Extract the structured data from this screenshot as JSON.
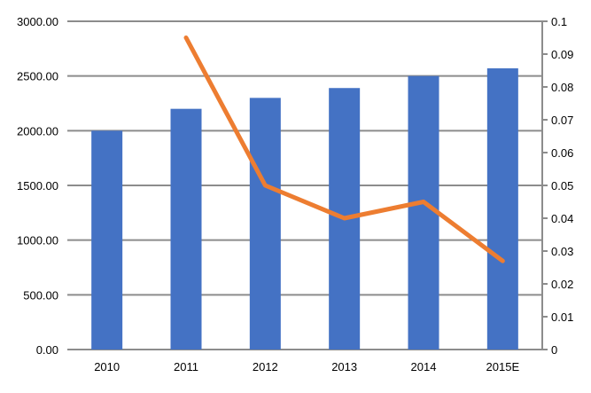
{
  "chart_data": {
    "type": "bar+line",
    "categories": [
      "2010",
      "2011",
      "2012",
      "2013",
      "2014",
      "2015E"
    ],
    "series": [
      {
        "type": "bar",
        "axis": "left",
        "color": "#4472C4",
        "values": [
          2000,
          2200,
          2300,
          2390,
          2500,
          2570
        ]
      },
      {
        "type": "line",
        "axis": "right",
        "color": "#ED7D31",
        "values": [
          null,
          0.095,
          0.05,
          0.04,
          0.045,
          0.027
        ]
      }
    ],
    "left_axis": {
      "ylim": [
        0,
        3000
      ],
      "ticks": [
        "0.00",
        "500.00",
        "1000.00",
        "1500.00",
        "2000.00",
        "2500.00",
        "3000.00"
      ]
    },
    "right_axis": {
      "ylim": [
        0,
        0.1
      ],
      "ticks": [
        "0",
        "0.01",
        "0.02",
        "0.03",
        "0.04",
        "0.05",
        "0.06",
        "0.07",
        "0.08",
        "0.09",
        "0.1"
      ]
    },
    "grid": true,
    "legend": "none",
    "title": "",
    "xlabel": "",
    "ylabel": ""
  }
}
